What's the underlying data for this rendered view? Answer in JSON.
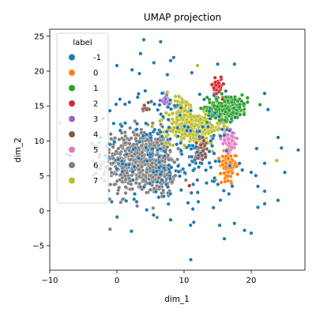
{
  "chart_data": {
    "type": "scatter",
    "title": "UMAP projection",
    "xlabel": "dim_1",
    "ylabel": "dim_2",
    "xlim": [
      -10,
      28
    ],
    "ylim": [
      -8.5,
      26
    ],
    "xticks": [
      -10,
      0,
      10,
      20
    ],
    "yticks": [
      -5,
      0,
      5,
      10,
      15,
      20,
      25
    ],
    "grid": false,
    "legend": {
      "title": "label",
      "placement": "top-left",
      "entries": [
        {
          "label": "-1",
          "color": "#1f77b4"
        },
        {
          "label": "0",
          "color": "#ff7f0e"
        },
        {
          "label": "1",
          "color": "#2ca02c"
        },
        {
          "label": "2",
          "color": "#d62728"
        },
        {
          "label": "3",
          "color": "#9467bd"
        },
        {
          "label": "4",
          "color": "#8c564b"
        },
        {
          "label": "5",
          "color": "#e377c2"
        },
        {
          "label": "6",
          "color": "#7f7f7f"
        },
        {
          "label": "7",
          "color": "#bcbd22"
        }
      ]
    },
    "clusters": [
      {
        "label": "6",
        "color": "#7f7f7f",
        "cx": 3.0,
        "cy": 7.0,
        "sx": 2.6,
        "sy": 2.3,
        "n": 520
      },
      {
        "label": "6",
        "color": "#7f7f7f",
        "cx": 6.5,
        "cy": 6.0,
        "sx": 1.0,
        "sy": 1.8,
        "n": 140
      },
      {
        "label": "7",
        "color": "#bcbd22",
        "cx": 11.5,
        "cy": 11.8,
        "sx": 2.0,
        "sy": 1.1,
        "n": 320
      },
      {
        "label": "7",
        "color": "#bcbd22",
        "cx": 9.8,
        "cy": 14.3,
        "sx": 0.9,
        "sy": 1.0,
        "n": 80
      },
      {
        "label": "1",
        "color": "#2ca02c",
        "cx": 16.5,
        "cy": 14.8,
        "sx": 1.5,
        "sy": 0.9,
        "n": 200
      },
      {
        "label": "0",
        "color": "#ff7f0e",
        "cx": 16.6,
        "cy": 6.5,
        "sx": 0.6,
        "sy": 1.0,
        "n": 110
      },
      {
        "label": "5",
        "color": "#e377c2",
        "cx": 16.8,
        "cy": 9.9,
        "sx": 0.6,
        "sy": 0.7,
        "n": 60
      },
      {
        "label": "2",
        "color": "#d62728",
        "cx": 15.0,
        "cy": 18.0,
        "sx": 0.35,
        "sy": 0.7,
        "n": 45
      },
      {
        "label": "3",
        "color": "#9467bd",
        "cx": 7.2,
        "cy": 15.7,
        "sx": 0.35,
        "sy": 0.35,
        "n": 30
      },
      {
        "label": "4",
        "color": "#8c564b",
        "cx": 12.5,
        "cy": 8.6,
        "sx": 0.45,
        "sy": 0.8,
        "n": 55
      },
      {
        "label": "4",
        "color": "#8c564b",
        "cx": 4.3,
        "cy": 14.5,
        "sx": 0.25,
        "sy": 0.4,
        "n": 18
      },
      {
        "label": "-1",
        "color": "#1f77b4",
        "cx": 8.0,
        "cy": 9.0,
        "sx": 5.0,
        "sy": 4.5,
        "n": 220
      }
    ],
    "outliers": [
      {
        "label": "-1",
        "points": [
          [
            0,
            20.8
          ],
          [
            4,
            24.5
          ],
          [
            6.5,
            24.2
          ],
          [
            3.5,
            22.5
          ],
          [
            5.5,
            21.2
          ],
          [
            7.5,
            19.5
          ],
          [
            8,
            21.5
          ],
          [
            15,
            21.0
          ],
          [
            17.5,
            21.0
          ],
          [
            22,
            16.8
          ],
          [
            22.5,
            14.5
          ],
          [
            24,
            10.5
          ],
          [
            24.5,
            9.0
          ],
          [
            27,
            8.7
          ],
          [
            22,
            6.8
          ],
          [
            25,
            5.5
          ],
          [
            21,
            3.5
          ],
          [
            22,
            2.8
          ],
          [
            22,
            1.0
          ],
          [
            21,
            0.5
          ],
          [
            24,
            1.5
          ],
          [
            17.5,
            -1.8
          ],
          [
            19,
            -2.8
          ],
          [
            20,
            -3.2
          ],
          [
            16,
            -4.0
          ],
          [
            8,
            -1.3
          ],
          [
            11,
            -7.0
          ],
          [
            -1,
            9.5
          ],
          [
            -0.5,
            12.5
          ],
          [
            0.5,
            11.5
          ],
          [
            -2.5,
            10.5
          ],
          [
            20,
            5.5
          ]
        ]
      },
      {
        "label": "7",
        "points": [
          [
            12,
            20.8
          ],
          [
            7.5,
            17.0
          ],
          [
            23.8,
            7.2
          ],
          [
            -8.5,
            12.5
          ]
        ]
      },
      {
        "label": "2",
        "points": [
          [
            10.8,
            3.6
          ]
        ]
      }
    ]
  }
}
